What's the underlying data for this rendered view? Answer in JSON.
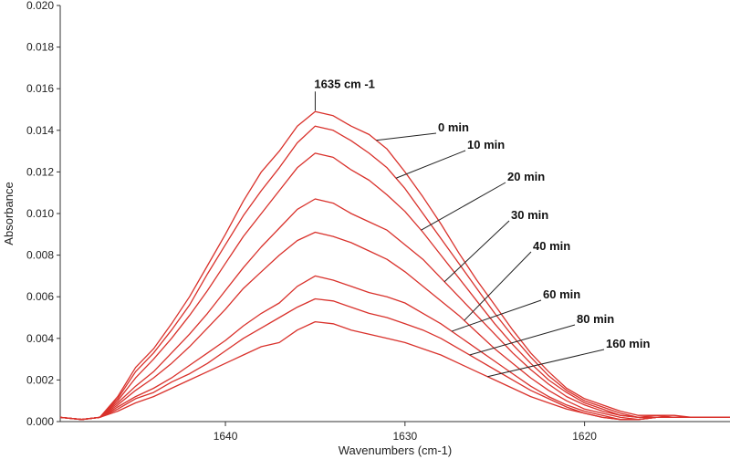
{
  "chart_data": {
    "type": "line",
    "xlabel": "Wavenumbers (cm-1)",
    "ylabel": "Absorbance",
    "xlim": [
      1649.2,
      1611.9
    ],
    "ylim": [
      0,
      0.02
    ],
    "x_reversed": true,
    "grid": false,
    "xticks": [
      1640,
      1630,
      1620
    ],
    "xtick_labels": [
      "1640",
      "1630",
      "1620"
    ],
    "yticks": [
      0,
      0.002,
      0.004,
      0.006,
      0.008,
      0.01,
      0.012,
      0.014,
      0.016,
      0.018,
      0.02
    ],
    "ytick_labels": [
      "0.000",
      "0.002",
      "0.004",
      "0.006",
      "0.008",
      "0.010",
      "0.012",
      "0.014",
      "0.016",
      "0.018",
      "0.020"
    ],
    "line_color": "#d9312b",
    "peak_annotation": {
      "text": "1635 cm -1",
      "x": 1635,
      "y": 0.0149
    },
    "x": [
      1649.2,
      1648.0,
      1647.0,
      1646.0,
      1645.0,
      1644.0,
      1643.0,
      1642.0,
      1641.0,
      1640.0,
      1639.0,
      1638.0,
      1637.0,
      1636.0,
      1635.0,
      1634.0,
      1633.0,
      1632.0,
      1631.0,
      1630.0,
      1629.0,
      1628.0,
      1627.0,
      1626.0,
      1625.0,
      1624.0,
      1623.0,
      1622.0,
      1621.0,
      1620.0,
      1619.0,
      1618.0,
      1617.0,
      1616.0,
      1615.0,
      1614.0,
      1613.0,
      1611.9
    ],
    "series": [
      {
        "name": "0 min",
        "values": [
          0.0002,
          0.0001,
          0.0002,
          0.0012,
          0.0026,
          0.0035,
          0.0047,
          0.006,
          0.0075,
          0.009,
          0.0106,
          0.012,
          0.013,
          0.0142,
          0.0149,
          0.0147,
          0.0142,
          0.0138,
          0.0131,
          0.012,
          0.0108,
          0.0095,
          0.0081,
          0.0068,
          0.0056,
          0.0044,
          0.0033,
          0.0024,
          0.0016,
          0.0011,
          0.0008,
          0.0005,
          0.0003,
          0.0003,
          0.0002,
          0.0002,
          0.0002,
          0.0002
        ]
      },
      {
        "name": "10 min",
        "values": [
          0.0002,
          0.0001,
          0.0002,
          0.0011,
          0.0024,
          0.0033,
          0.0044,
          0.0056,
          0.0071,
          0.0085,
          0.0099,
          0.0111,
          0.0122,
          0.0134,
          0.0142,
          0.014,
          0.0135,
          0.0129,
          0.0122,
          0.0112,
          0.01,
          0.0088,
          0.0076,
          0.0064,
          0.0052,
          0.0041,
          0.0031,
          0.0022,
          0.0015,
          0.001,
          0.0007,
          0.0004,
          0.0002,
          0.0003,
          0.0003,
          0.0002,
          0.0002,
          0.0002
        ]
      },
      {
        "name": "20 min",
        "values": [
          0.0002,
          0.0001,
          0.0002,
          0.001,
          0.0021,
          0.003,
          0.004,
          0.0051,
          0.0063,
          0.0076,
          0.0089,
          0.01,
          0.0111,
          0.0122,
          0.0129,
          0.0127,
          0.0121,
          0.0116,
          0.0109,
          0.0101,
          0.0091,
          0.008,
          0.0069,
          0.0058,
          0.0047,
          0.0037,
          0.0028,
          0.002,
          0.0014,
          0.0009,
          0.0006,
          0.0003,
          0.0002,
          0.0002,
          0.0002,
          0.0002,
          0.0002,
          0.0002
        ]
      },
      {
        "name": "30 min",
        "values": [
          0.0002,
          0.0001,
          0.0002,
          0.0009,
          0.0017,
          0.0024,
          0.0033,
          0.0042,
          0.0052,
          0.0063,
          0.0074,
          0.0084,
          0.0093,
          0.0102,
          0.0107,
          0.0105,
          0.01,
          0.0096,
          0.0092,
          0.0085,
          0.0078,
          0.0069,
          0.006,
          0.0051,
          0.0042,
          0.0033,
          0.0025,
          0.0018,
          0.0012,
          0.0008,
          0.0005,
          0.0003,
          0.0002,
          0.0002,
          0.0002,
          0.0002,
          0.0002,
          0.0002
        ]
      },
      {
        "name": "40 min",
        "values": [
          0.0002,
          0.0001,
          0.0002,
          0.0008,
          0.0015,
          0.0021,
          0.0028,
          0.0036,
          0.0045,
          0.0054,
          0.0064,
          0.0072,
          0.008,
          0.0087,
          0.0091,
          0.0089,
          0.0086,
          0.0082,
          0.0078,
          0.0072,
          0.0065,
          0.0058,
          0.0051,
          0.0043,
          0.0035,
          0.0028,
          0.0021,
          0.0015,
          0.001,
          0.0006,
          0.0004,
          0.0002,
          0.0001,
          0.0002,
          0.0002,
          0.0002,
          0.0002,
          0.0002
        ]
      },
      {
        "name": "60 min",
        "values": [
          0.0002,
          0.0001,
          0.0002,
          0.0007,
          0.0012,
          0.0016,
          0.0021,
          0.0027,
          0.0033,
          0.0039,
          0.0046,
          0.0052,
          0.0057,
          0.0065,
          0.007,
          0.0068,
          0.0065,
          0.0062,
          0.006,
          0.0057,
          0.0052,
          0.0047,
          0.0041,
          0.0035,
          0.0029,
          0.0023,
          0.0017,
          0.0012,
          0.0008,
          0.0005,
          0.0003,
          0.0001,
          0.0001,
          0.0002,
          0.0002,
          0.0002,
          0.0002,
          0.0002
        ]
      },
      {
        "name": "80 min",
        "values": [
          0.0002,
          0.0001,
          0.0002,
          0.0006,
          0.0011,
          0.0014,
          0.0019,
          0.0023,
          0.0028,
          0.0034,
          0.004,
          0.0045,
          0.005,
          0.0055,
          0.0059,
          0.0058,
          0.0055,
          0.0052,
          0.005,
          0.0047,
          0.0044,
          0.004,
          0.0035,
          0.003,
          0.0025,
          0.002,
          0.0015,
          0.0011,
          0.0007,
          0.0004,
          0.0002,
          0.0001,
          0.0001,
          0.0002,
          0.0002,
          0.0002,
          0.0002,
          0.0002
        ]
      },
      {
        "name": "160 min",
        "values": [
          0.0002,
          0.0001,
          0.0002,
          0.0005,
          0.0009,
          0.0012,
          0.0016,
          0.002,
          0.0024,
          0.0028,
          0.0032,
          0.0036,
          0.0038,
          0.0044,
          0.0048,
          0.0047,
          0.0044,
          0.0042,
          0.004,
          0.0038,
          0.0035,
          0.0032,
          0.0028,
          0.0024,
          0.002,
          0.0016,
          0.0012,
          0.0009,
          0.0006,
          0.0004,
          0.0002,
          0.0001,
          0.0001,
          0.0002,
          0.0002,
          0.0002,
          0.0002,
          0.0002
        ]
      }
    ],
    "series_label_anchor_x": [
      1631.6,
      1630.5,
      1629.1,
      1627.8,
      1626.7,
      1627.4,
      1626.4,
      1625.4
    ]
  }
}
